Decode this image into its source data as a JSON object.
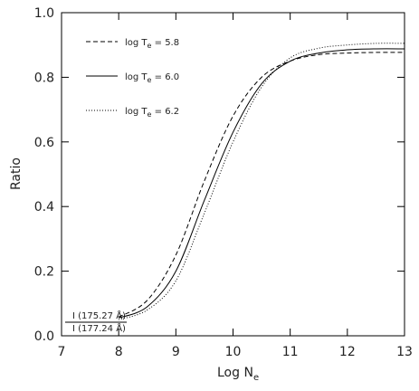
{
  "chart_data": {
    "type": "line",
    "x_label": [
      "Log N",
      "e"
    ],
    "y_label": "Ratio",
    "annotation": [
      "I (175.27 Å)",
      "I (177.24 Å)"
    ],
    "x": [
      8,
      8.5,
      9,
      9.5,
      10,
      10.5,
      11,
      11.5,
      12,
      12.5,
      13
    ],
    "series": [
      {
        "name": [
          "log T",
          "e",
          " = 5.8"
        ],
        "color": "#000000",
        "dash": "5,3",
        "values": [
          0.058,
          0.11,
          0.25,
          0.48,
          0.68,
          0.8,
          0.85,
          0.87,
          0.875,
          0.877,
          0.877
        ]
      },
      {
        "name": [
          "log T",
          "e",
          " = 6.0"
        ],
        "color": "#000000",
        "dash": "none",
        "values": [
          0.055,
          0.09,
          0.2,
          0.42,
          0.63,
          0.78,
          0.85,
          0.875,
          0.885,
          0.888,
          0.888
        ]
      },
      {
        "name": [
          "log T",
          "e",
          " = 6.2"
        ],
        "color": "#000000",
        "dash": "1,2",
        "values": [
          0.05,
          0.08,
          0.17,
          0.38,
          0.6,
          0.77,
          0.86,
          0.89,
          0.9,
          0.905,
          0.905
        ]
      }
    ],
    "xlim": [
      7,
      13
    ],
    "xticks": [
      7,
      8,
      9,
      10,
      11,
      12,
      13
    ],
    "ylim": [
      0,
      1
    ],
    "yticks": [
      {
        "value": 0,
        "label": "0.0"
      },
      {
        "value": 0.2,
        "label": "0.2"
      },
      {
        "value": 0.4,
        "label": "0.4"
      },
      {
        "value": 0.6,
        "label": "0.6"
      },
      {
        "value": 0.8,
        "label": "0.8"
      },
      {
        "value": 1,
        "label": "1.0"
      }
    ]
  }
}
